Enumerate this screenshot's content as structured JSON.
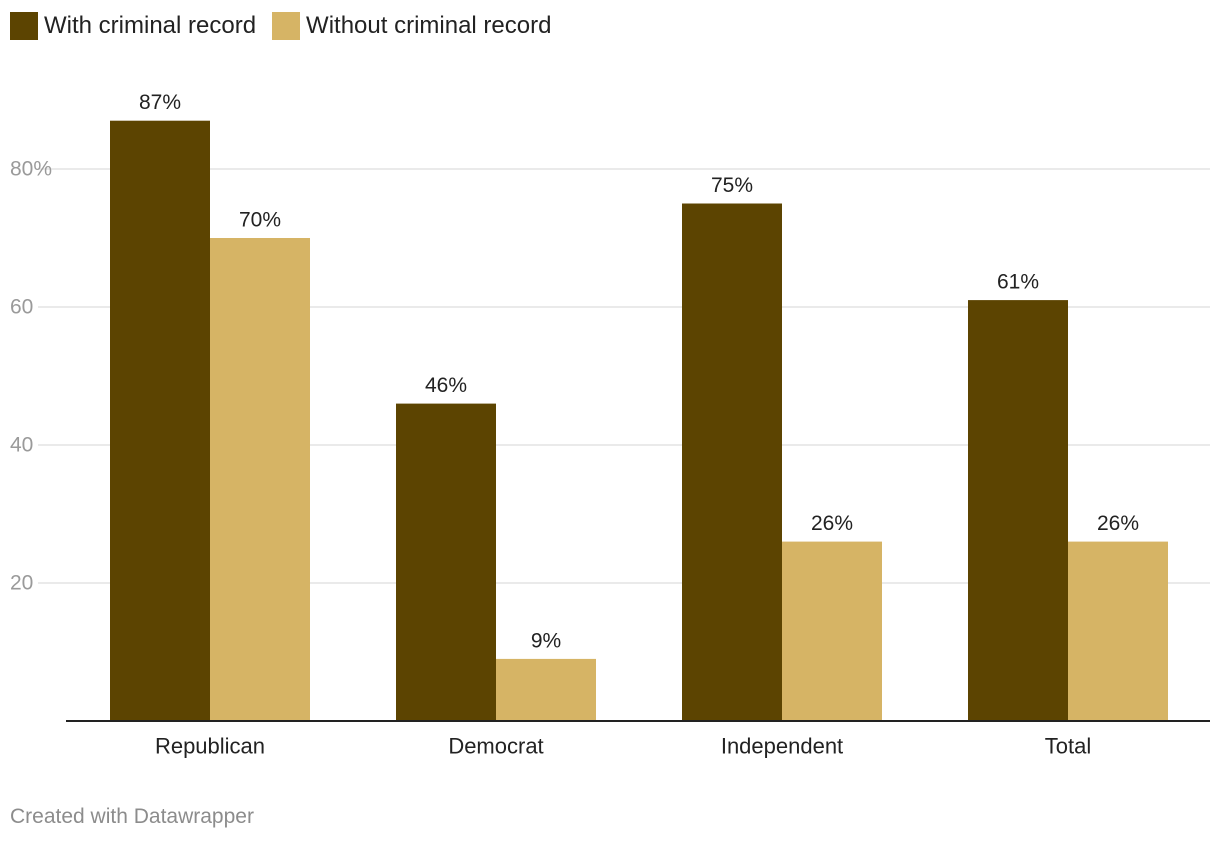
{
  "chart_data": {
    "type": "bar",
    "categories": [
      "Republican",
      "Democrat",
      "Independent",
      "Total"
    ],
    "series": [
      {
        "name": "With criminal record",
        "values": [
          87,
          46,
          75,
          61
        ],
        "color": "#5c4401"
      },
      {
        "name": "Without criminal record",
        "values": [
          70,
          9,
          26,
          26
        ],
        "color": "#d6b465"
      }
    ],
    "value_labels": [
      [
        "87%",
        "46%",
        "75%",
        "61%"
      ],
      [
        "70%",
        "9%",
        "26%",
        "26%"
      ]
    ],
    "yticks": [
      20,
      40,
      60,
      80
    ],
    "ytick_labels": [
      "20",
      "40",
      "60",
      "80%"
    ],
    "ylim": [
      0,
      87
    ],
    "grid": true,
    "legend_position": "top-left",
    "title": "",
    "xlabel": "",
    "ylabel": ""
  },
  "footer": {
    "credit": "Created with Datawrapper"
  },
  "colors": {
    "grid": "#e3e3e3",
    "axis": "#222222",
    "tick_label": "#9a9a9a",
    "text": "#222222"
  }
}
